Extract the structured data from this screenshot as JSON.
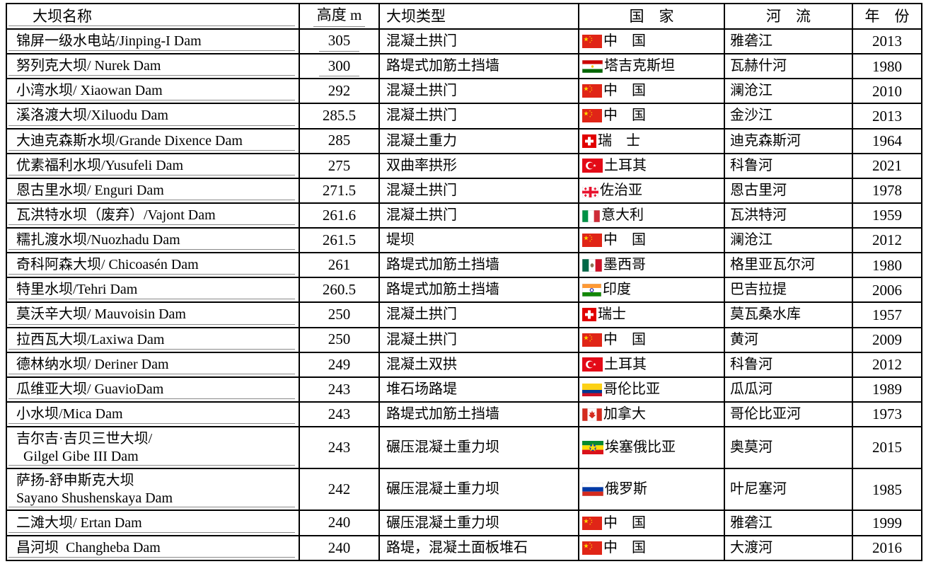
{
  "table": {
    "headers": {
      "name": "大坝名称",
      "height": "高度 m",
      "type": "大坝类型",
      "country": "国　家",
      "river": "河　流",
      "year": "年　份"
    },
    "rows": [
      {
        "name": "锦屏一级水电站/Jinping-I Dam",
        "name2": "",
        "height": "305",
        "height_underline": true,
        "type": "混凝土拱门",
        "flag": "china",
        "country": "中　国",
        "river": "雅砻江",
        "year": "2013"
      },
      {
        "name": "努列克大坝/ Nurek Dam",
        "name2": "",
        "height": "300",
        "height_underline": true,
        "type": "路堤式加筋土挡墙",
        "flag": "tajikistan",
        "country": "塔吉克斯坦",
        "river": "瓦赫什河",
        "year": "1980"
      },
      {
        "name": "小湾水坝/ Xiaowan Dam",
        "name2": "",
        "height": "292",
        "height_underline": false,
        "type": "混凝土拱门",
        "flag": "china",
        "country": "中　国",
        "river": "澜沧江",
        "year": "2010"
      },
      {
        "name": "溪洛渡大坝/Xiluodu Dam",
        "name2": "",
        "height": "285.5",
        "height_underline": false,
        "type": "混凝土拱门",
        "flag": "china",
        "country": "中　国",
        "river": "金沙江",
        "year": "2013"
      },
      {
        "name": "大迪克森斯水坝/Grande Dixence Dam",
        "name2": "",
        "height": "285",
        "height_underline": false,
        "type": "混凝土重力",
        "flag": "switzerland",
        "country": "瑞　士",
        "river": "迪克森斯河",
        "year": "1964"
      },
      {
        "name": "优素福利水坝/Yusufeli Dam",
        "name2": "",
        "height": "275",
        "height_underline": false,
        "type": "双曲率拱形",
        "flag": "turkey",
        "country": "土耳其",
        "river": "科鲁河",
        "year": "2021"
      },
      {
        "name": "恩古里水坝/ Enguri Dam",
        "name2": "",
        "height": "271.5",
        "height_underline": false,
        "type": "混凝土拱门",
        "flag": "georgia",
        "country": "佐治亚",
        "river": "恩古里河",
        "year": "1978"
      },
      {
        "name": "瓦洪特水坝（废弃）/Vajont Dam",
        "name2": "",
        "height": "261.6",
        "height_underline": false,
        "type": "混凝土拱门",
        "flag": "italy",
        "country": "意大利",
        "river": "瓦洪特河",
        "year": "1959"
      },
      {
        "name": "糯扎渡水坝/Nuozhadu Dam",
        "name2": "",
        "height": "261.5",
        "height_underline": false,
        "type": "堤坝",
        "flag": "china",
        "country": "中　国",
        "river": "澜沧江",
        "year": "2012"
      },
      {
        "name": "奇科阿森大坝/ Chicoasén Dam",
        "name2": "",
        "height": "261",
        "height_underline": false,
        "type": "路堤式加筋土挡墙",
        "flag": "mexico",
        "country": "墨西哥",
        "river": "格里亚瓦尔河",
        "year": "1980"
      },
      {
        "name": "特里水坝/Tehri Dam",
        "name2": "",
        "height": "260.5",
        "height_underline": false,
        "type": "路堤式加筋土挡墙",
        "flag": "india",
        "country": "印度",
        "river": "巴吉拉提",
        "year": "2006"
      },
      {
        "name": "莫沃辛大坝/ Mauvoisin Dam",
        "name2": "",
        "height": "250",
        "height_underline": false,
        "type": "混凝土拱门",
        "flag": "switzerland",
        "country": "瑞士",
        "river": "莫瓦桑水库",
        "year": "1957"
      },
      {
        "name": "拉西瓦大坝/Laxiwa Dam",
        "name2": "",
        "height": "250",
        "height_underline": false,
        "type": "混凝土拱门",
        "flag": "china",
        "country": "中　国",
        "river": "黄河",
        "year": "2009"
      },
      {
        "name": "德林纳水坝/ Deriner Dam",
        "name2": "",
        "height": "249",
        "height_underline": false,
        "type": "混凝土双拱",
        "flag": "turkey",
        "country": "土耳其",
        "river": "科鲁河",
        "year": "2012"
      },
      {
        "name": "瓜维亚大坝/ GuavioDam",
        "name2": "",
        "height": "243",
        "height_underline": false,
        "type": "堆石场路堤",
        "flag": "colombia",
        "country": "哥伦比亚",
        "river": "瓜瓜河",
        "year": "1989"
      },
      {
        "name": "小水坝/Mica Dam",
        "name2": "",
        "height": "243",
        "height_underline": false,
        "type": "路堤式加筋土挡墙",
        "flag": "canada",
        "country": "加拿大",
        "river": "哥伦比亚河",
        "year": "1973"
      },
      {
        "name": "吉尔吉·吉贝三世大坝/",
        "name2": "  Gilgel Gibe III Dam",
        "height": "243",
        "height_underline": false,
        "type": "碾压混凝土重力坝",
        "flag": "ethiopia",
        "country": "埃塞俄比亚",
        "river": "奥莫河",
        "year": "2015"
      },
      {
        "name": "萨扬-舒申斯克大坝",
        "name2": "Sayano Shushenskaya Dam",
        "height": "242",
        "height_underline": false,
        "type": "碾压混凝土重力坝",
        "flag": "russia",
        "country": "俄罗斯",
        "river": "叶尼塞河",
        "year": "1985"
      },
      {
        "name": "二滩大坝/ Ertan Dam",
        "name2": "",
        "height": "240",
        "height_underline": false,
        "type": "碾压混凝土重力坝",
        "flag": "china",
        "country": "中　国",
        "river": "雅砻江",
        "year": "1999"
      },
      {
        "name": "昌河坝  Changheba Dam",
        "name2": "",
        "height": "240",
        "height_underline": false,
        "type": "路堤，混凝土面板堆石",
        "flag": "china",
        "country": "中　国",
        "river": "大渡河",
        "year": "2016"
      }
    ]
  },
  "colors": {
    "table_border": "#000000",
    "underline_artifact": "#8a8a8a",
    "background": "#ffffff"
  }
}
